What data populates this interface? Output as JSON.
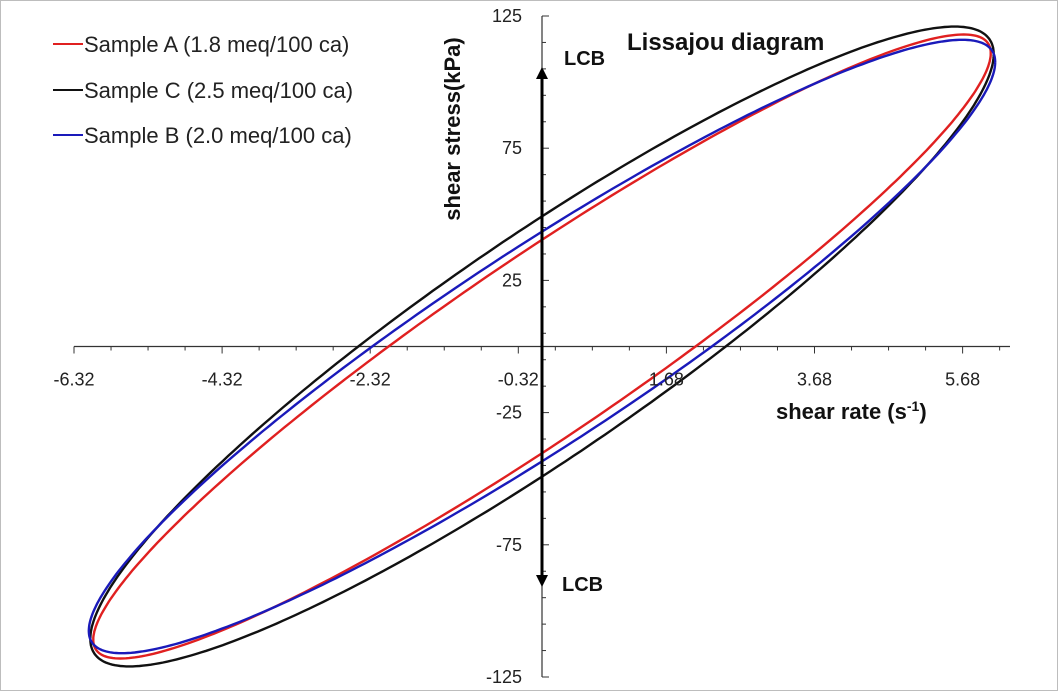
{
  "chart_data": {
    "type": "line",
    "title": "Lissajou diagram",
    "xlabel": "shear rate (s",
    "xlabel_sup": "-1",
    "xlabel_close": ")",
    "ylabel": "shear stress(kPa)",
    "xlim": [
      -6.32,
      6.32
    ],
    "ylim": [
      -125,
      125
    ],
    "x_ticks": [
      -6.32,
      -4.32,
      -2.32,
      -0.32,
      1.68,
      3.68,
      5.68
    ],
    "x_tick_labels": [
      "-6.32",
      "-4.32",
      "-2.32",
      "-0.32",
      "1.68",
      "3.68",
      "5.68"
    ],
    "y_ticks": [
      125,
      75,
      25,
      -25,
      -75,
      -125
    ],
    "y_tick_labels": [
      "125",
      "75",
      "25",
      "-25",
      "-75",
      "-125"
    ],
    "legend_position": "top-left",
    "grid": false,
    "annotations": [
      {
        "text": "LCB",
        "at": "top of vertical arrow"
      },
      {
        "text": "LCB",
        "at": "bottom of vertical arrow"
      }
    ],
    "series": [
      {
        "name": "Sample A (1.8 meq/100 ca)",
        "color": "#e02020",
        "amplitude_x": 6.06,
        "amplitude_y": 118,
        "phase_deg": 20,
        "x_intercepts": [
          -1.33,
          1.22
        ],
        "y_intercepts": [
          34,
          -33
        ]
      },
      {
        "name": "Sample C (2.5 meq/100 ca)",
        "color": "#111111",
        "amplitude_x": 6.1,
        "amplitude_y": 121,
        "phase_deg": 24,
        "x_intercepts": [
          -1.72,
          1.65
        ],
        "y_intercepts": [
          43,
          -43
        ]
      },
      {
        "name": "Sample B (2.0 meq/100 ca)",
        "color": "#1a1aba",
        "amplitude_x": 6.12,
        "amplitude_y": 116,
        "phase_deg": 22,
        "x_intercepts": [
          -1.55,
          1.45
        ],
        "y_intercepts": [
          37,
          -38
        ]
      }
    ]
  }
}
